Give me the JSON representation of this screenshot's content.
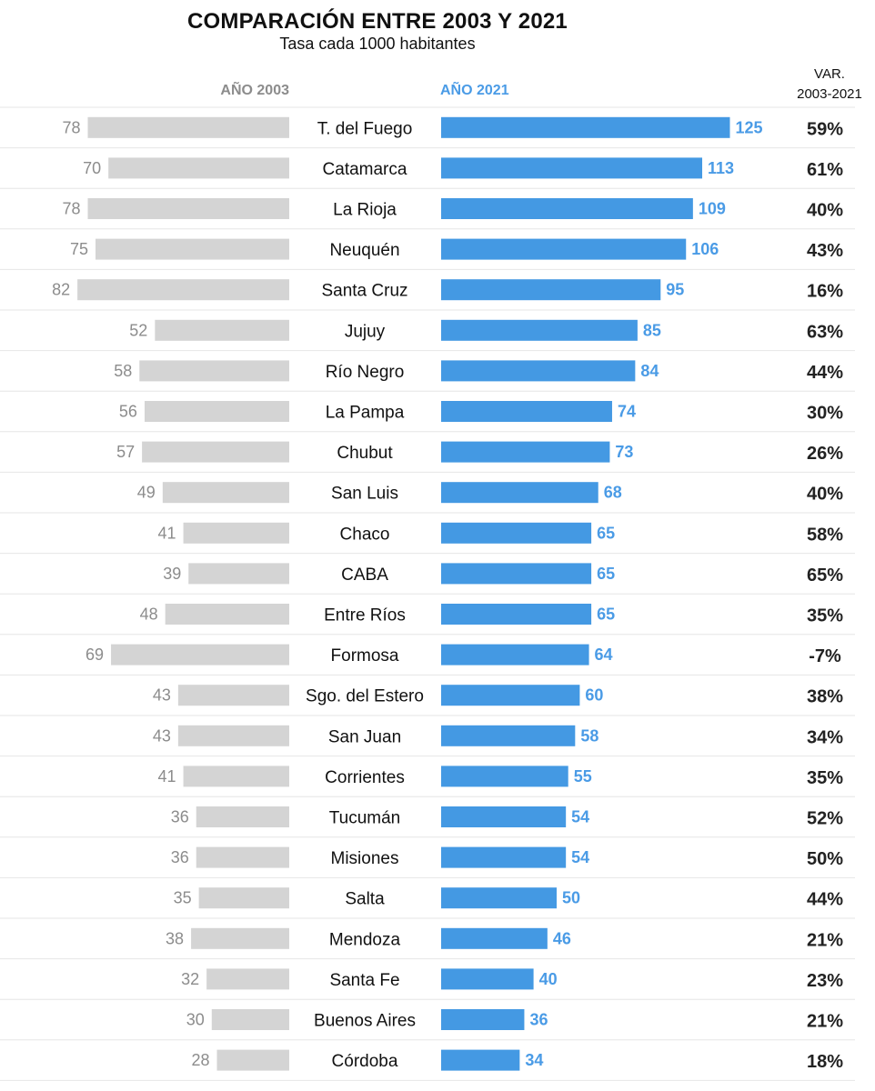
{
  "chart_data": {
    "type": "bar",
    "title": "COMPARACIÓN ENTRE 2003 Y 2021",
    "subtitle": "Tasa cada 1000 habitantes",
    "columns": {
      "left": "AÑO 2003",
      "right": "AÑO 2021",
      "variation_line1": "VAR.",
      "variation_line2": "2003-2021"
    },
    "categories": [
      "T. del Fuego",
      "Catamarca",
      "La Rioja",
      "Neuquén",
      "Santa Cruz",
      "Jujuy",
      "Río Negro",
      "La Pampa",
      "Chubut",
      "San Luis",
      "Chaco",
      "CABA",
      "Entre Ríos",
      "Formosa",
      "Sgo. del Estero",
      "San Juan",
      "Corrientes",
      "Tucumán",
      "Misiones",
      "Salta",
      "Mendoza",
      "Santa Fe",
      "Buenos Aires",
      "Córdoba"
    ],
    "series": [
      {
        "name": "AÑO 2003",
        "values": [
          78,
          70,
          78,
          75,
          82,
          52,
          58,
          56,
          57,
          49,
          41,
          39,
          48,
          69,
          43,
          43,
          41,
          36,
          36,
          35,
          38,
          32,
          30,
          28
        ]
      },
      {
        "name": "AÑO 2021",
        "values": [
          125,
          113,
          109,
          106,
          95,
          85,
          84,
          74,
          73,
          68,
          65,
          65,
          65,
          64,
          60,
          58,
          55,
          54,
          54,
          50,
          46,
          40,
          36,
          34
        ]
      }
    ],
    "variation": [
      "59%",
      "61%",
      "40%",
      "43%",
      "16%",
      "63%",
      "44%",
      "30%",
      "26%",
      "40%",
      "58%",
      "65%",
      "35%",
      "-7%",
      "38%",
      "34%",
      "35%",
      "52%",
      "50%",
      "44%",
      "21%",
      "23%",
      "21%",
      "18%"
    ],
    "colors": {
      "left_bar": "#d4d4d4",
      "right_bar": "#4499e3",
      "left_label": "#8c8c8c",
      "right_label": "#4a9be6",
      "divider": "#e6e6e6"
    },
    "layout": "mirrored horizontal bars sorted by 2021 value"
  }
}
